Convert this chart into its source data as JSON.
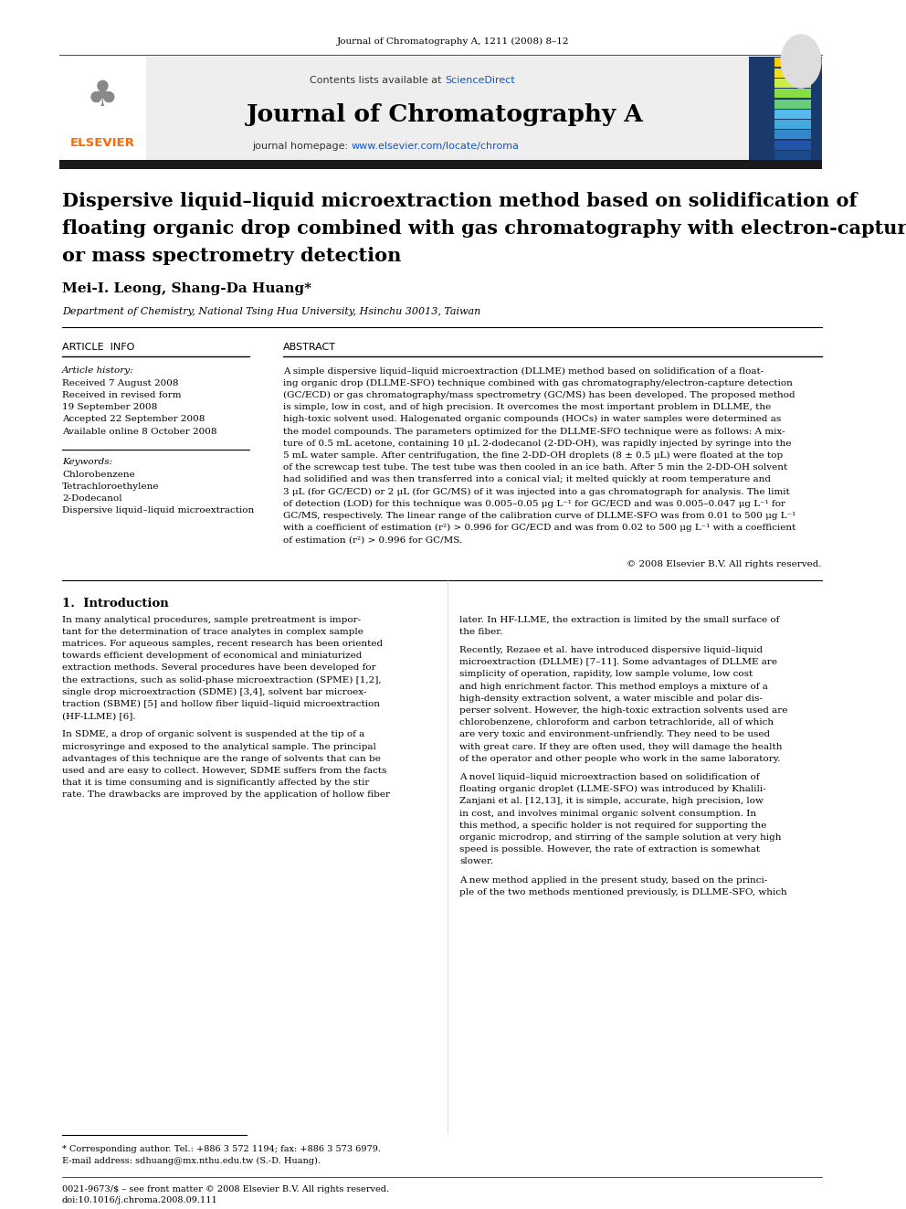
{
  "page_width": 9.92,
  "page_height": 13.23,
  "bg_color": "#ffffff",
  "journal_ref": "Journal of Chromatography A, 1211 (2008) 8–12",
  "journal_name": "Journal of Chromatography A",
  "contents_text": "Contents lists available at ",
  "sciencedirect_text": "ScienceDirect",
  "homepage_text": "journal homepage: ",
  "homepage_url": "www.elsevier.com/locate/chroma",
  "elsevier_color": "#FF6600",
  "link_color": "#1155CC",
  "article_title_line1": "Dispersive liquid–liquid microextraction method based on solidification of",
  "article_title_line2": "floating organic drop combined with gas chromatography with electron-capture",
  "article_title_line3": "or mass spectrometry detection",
  "authors": "Mei-I. Leong, Shang-Da Huang*",
  "affiliation": "Department of Chemistry, National Tsing Hua University, Hsinchu 30013, Taiwan",
  "article_info_header": "ARTICLE  INFO",
  "abstract_header": "ABSTRACT",
  "article_history_label": "Article history:",
  "received1": "Received 7 August 2008",
  "received2": "Received in revised form",
  "received2b": "19 September 2008",
  "accepted": "Accepted 22 September 2008",
  "available": "Available online 8 October 2008",
  "keywords_label": "Keywords:",
  "keyword1": "Chlorobenzene",
  "keyword2": "Tetrachloroethylene",
  "keyword3": "2-Dodecanol",
  "keyword4": "Dispersive liquid–liquid microextraction",
  "copyright_text": "© 2008 Elsevier B.V. All rights reserved.",
  "section1_header": "1.  Introduction",
  "footnote_text": "* Corresponding author. Tel.: +886 3 572 1194; fax: +886 3 573 6979.",
  "footnote_email": "E-mail address: sdhuang@mx.nthu.edu.tw (S.-D. Huang).",
  "footer_issn": "0021-9673/$ – see front matter © 2008 Elsevier B.V. All rights reserved.",
  "footer_doi": "doi:10.1016/j.chroma.2008.09.111",
  "abstract_lines": [
    "A simple dispersive liquid–liquid microextraction (DLLME) method based on solidification of a float-",
    "ing organic drop (DLLME-SFO) technique combined with gas chromatography/electron-capture detection",
    "(GC/ECD) or gas chromatography/mass spectrometry (GC/MS) has been developed. The proposed method",
    "is simple, low in cost, and of high precision. It overcomes the most important problem in DLLME, the",
    "high-toxic solvent used. Halogenated organic compounds (HOCs) in water samples were determined as",
    "the model compounds. The parameters optimized for the DLLME-SFO technique were as follows: A mix-",
    "ture of 0.5 mL acetone, containing 10 μL 2-dodecanol (2-DD-OH), was rapidly injected by syringe into the",
    "5 mL water sample. After centrifugation, the fine 2-DD-OH droplets (8 ± 0.5 μL) were floated at the top",
    "of the screwcap test tube. The test tube was then cooled in an ice bath. After 5 min the 2-DD-OH solvent",
    "had solidified and was then transferred into a conical vial; it melted quickly at room temperature and",
    "3 μL (for GC/ECD) or 2 μL (for GC/MS) of it was injected into a gas chromatograph for analysis. The limit",
    "of detection (LOD) for this technique was 0.005–0.05 μg L⁻¹ for GC/ECD and was 0.005–0.047 μg L⁻¹ for",
    "GC/MS, respectively. The linear range of the calibration curve of DLLME-SFO was from 0.01 to 500 μg L⁻¹",
    "with a coefficient of estimation (r²) > 0.996 for GC/ECD and was from 0.02 to 500 μg L⁻¹ with a coefficient",
    "of estimation (r²) > 0.996 for GC/MS."
  ],
  "left_col_lines_1": [
    "In many analytical procedures, sample pretreatment is impor-",
    "tant for the determination of trace analytes in complex sample",
    "matrices. For aqueous samples, recent research has been oriented",
    "towards efficient development of economical and miniaturized",
    "extraction methods. Several procedures have been developed for",
    "the extractions, such as solid-phase microextraction (SPME) [1,2],",
    "single drop microextraction (SDME) [3,4], solvent bar microex-",
    "traction (SBME) [5] and hollow fiber liquid–liquid microextraction",
    "(HF-LLME) [6]."
  ],
  "left_col_lines_2": [
    "In SDME, a drop of organic solvent is suspended at the tip of a",
    "microsyringe and exposed to the analytical sample. The principal",
    "advantages of this technique are the range of solvents that can be",
    "used and are easy to collect. However, SDME suffers from the facts",
    "that it is time consuming and is significantly affected by the stir",
    "rate. The drawbacks are improved by the application of hollow fiber"
  ],
  "right_lines_1": [
    "later. In HF-LLME, the extraction is limited by the small surface of",
    "the fiber."
  ],
  "right_lines_2": [
    "Recently, Rezaee et al. have introduced dispersive liquid–liquid",
    "microextraction (DLLME) [7–11]. Some advantages of DLLME are",
    "simplicity of operation, rapidity, low sample volume, low cost",
    "and high enrichment factor. This method employs a mixture of a",
    "high-density extraction solvent, a water miscible and polar dis-",
    "perser solvent. However, the high-toxic extraction solvents used are",
    "chlorobenzene, chloroform and carbon tetrachloride, all of which",
    "are very toxic and environment-unfriendly. They need to be used",
    "with great care. If they are often used, they will damage the health",
    "of the operator and other people who work in the same laboratory."
  ],
  "right_lines_3": [
    "A novel liquid–liquid microextraction based on solidification of",
    "floating organic droplet (LLME-SFO) was introduced by Khalili-",
    "Zanjani et al. [12,13], it is simple, accurate, high precision, low",
    "in cost, and involves minimal organic solvent consumption. In",
    "this method, a specific holder is not required for supporting the",
    "organic microdrop, and stirring of the sample solution at very high",
    "speed is possible. However, the rate of extraction is somewhat",
    "slower."
  ],
  "right_lines_4": [
    "A new method applied in the present study, based on the princi-",
    "ple of the two methods mentioned previously, is DLLME-SFO, which"
  ],
  "stripe_colors": [
    "#1a4a8a",
    "#2255aa",
    "#3388cc",
    "#44aadd",
    "#55bbee",
    "#66cc77",
    "#88dd44",
    "#ccee44",
    "#eedd22",
    "#ffcc00"
  ]
}
